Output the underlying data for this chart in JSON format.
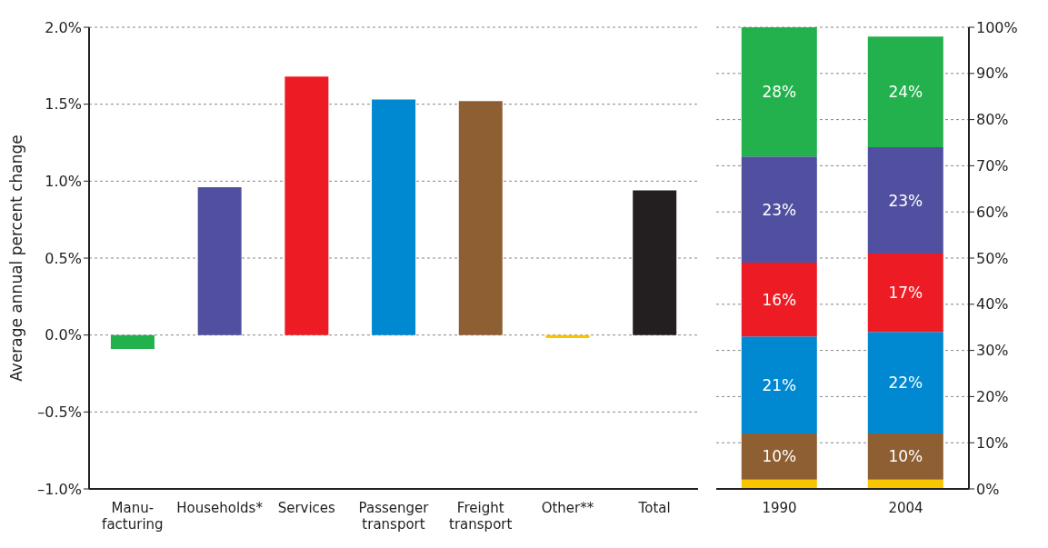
{
  "chart_data": [
    {
      "type": "bar",
      "ylabel": "Average annual percent change",
      "categories": [
        "Manu-\nfacturing",
        "Households*",
        "Services",
        "Passenger\ntransport",
        "Freight\ntransport",
        "Other**",
        "Total"
      ],
      "values": [
        -0.09,
        0.96,
        1.68,
        1.53,
        1.52,
        -0.02,
        0.94
      ],
      "colors": [
        "#22b14c",
        "#5150a0",
        "#ed1c24",
        "#0088d1",
        "#8f5f34",
        "#f7c600",
        "#231f20"
      ],
      "ylim": [
        -1,
        2
      ],
      "yticks": [
        {
          "value": -1,
          "label": "–1.0%"
        },
        {
          "value": -0.5,
          "label": "–0.5%"
        },
        {
          "value": 0,
          "label": "0.0%"
        },
        {
          "value": 0.5,
          "label": "0.5%"
        },
        {
          "value": 1,
          "label": "1.0%"
        },
        {
          "value": 1.5,
          "label": "1.5%"
        },
        {
          "value": 2,
          "label": "2.0%"
        }
      ],
      "grid": "y"
    },
    {
      "type": "bar",
      "stacked": true,
      "categories": [
        "1990",
        "2004"
      ],
      "series": [
        {
          "color": "#f7c600",
          "values": [
            2,
            2
          ]
        },
        {
          "color": "#8f5f34",
          "values": [
            10,
            10
          ],
          "value_labels": [
            "10%",
            "10%"
          ]
        },
        {
          "color": "#0088d1",
          "values": [
            21,
            22
          ],
          "value_labels": [
            "21%",
            "22%"
          ]
        },
        {
          "color": "#ed1c24",
          "values": [
            16,
            17
          ],
          "value_labels": [
            "16%",
            "17%"
          ]
        },
        {
          "color": "#5150a0",
          "values": [
            23,
            23
          ],
          "value_labels": [
            "23%",
            "23%"
          ]
        },
        {
          "color": "#22b14c",
          "values": [
            28,
            24
          ],
          "value_labels": [
            "28%",
            "24%"
          ]
        }
      ],
      "ylim": [
        0,
        100
      ],
      "yticks": [
        {
          "value": 0,
          "label": "0%"
        },
        {
          "value": 10,
          "label": "10%"
        },
        {
          "value": 20,
          "label": "20%"
        },
        {
          "value": 30,
          "label": "30%"
        },
        {
          "value": 40,
          "label": "40%"
        },
        {
          "value": 50,
          "label": "50%"
        },
        {
          "value": 60,
          "label": "60%"
        },
        {
          "value": 70,
          "label": "70%"
        },
        {
          "value": 80,
          "label": "80%"
        },
        {
          "value": 90,
          "label": "90%"
        },
        {
          "value": 100,
          "label": "100%"
        }
      ],
      "grid": "y"
    }
  ]
}
